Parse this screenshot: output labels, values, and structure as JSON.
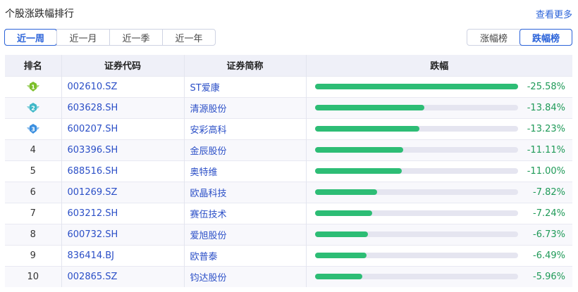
{
  "title": "个股涨跌幅排行",
  "more_label": "查看更多",
  "period_tabs": [
    {
      "label": "近一周",
      "active": true
    },
    {
      "label": "近一月"
    },
    {
      "label": "近一季"
    },
    {
      "label": "近一年"
    }
  ],
  "board_tabs": [
    {
      "label": "涨幅榜"
    },
    {
      "label": "跌幅榜",
      "active": true
    }
  ],
  "columns": [
    "排名",
    "证券代码",
    "证券简称",
    "跌幅"
  ],
  "colors": {
    "accent": "#2b63d9",
    "bar": "#2dbd75",
    "pct": "#1f9a58",
    "medal1": "#7cbf2a",
    "medal2": "#3fb8c8",
    "medal3": "#3b8fe0"
  },
  "rows": [
    {
      "rank": "1",
      "code": "002610.SZ",
      "name": "ST爱康",
      "change": "-25.58%",
      "value": -25.58
    },
    {
      "rank": "2",
      "code": "603628.SH",
      "name": "清源股份",
      "change": "-13.84%",
      "value": -13.84
    },
    {
      "rank": "3",
      "code": "600207.SH",
      "name": "安彩高科",
      "change": "-13.23%",
      "value": -13.23
    },
    {
      "rank": "4",
      "code": "603396.SH",
      "name": "金辰股份",
      "change": "-11.11%",
      "value": -11.11
    },
    {
      "rank": "5",
      "code": "688516.SH",
      "name": "奥特维",
      "change": "-11.00%",
      "value": -11.0
    },
    {
      "rank": "6",
      "code": "001269.SZ",
      "name": "欧晶科技",
      "change": "-7.82%",
      "value": -7.82
    },
    {
      "rank": "7",
      "code": "603212.SH",
      "name": "赛伍技术",
      "change": "-7.24%",
      "value": -7.24
    },
    {
      "rank": "8",
      "code": "600732.SH",
      "name": "爱旭股份",
      "change": "-6.73%",
      "value": -6.73
    },
    {
      "rank": "9",
      "code": "836414.BJ",
      "name": "欧普泰",
      "change": "-6.49%",
      "value": -6.49
    },
    {
      "rank": "10",
      "code": "002865.SZ",
      "name": "钧达股份",
      "change": "-5.96%",
      "value": -5.96
    }
  ]
}
